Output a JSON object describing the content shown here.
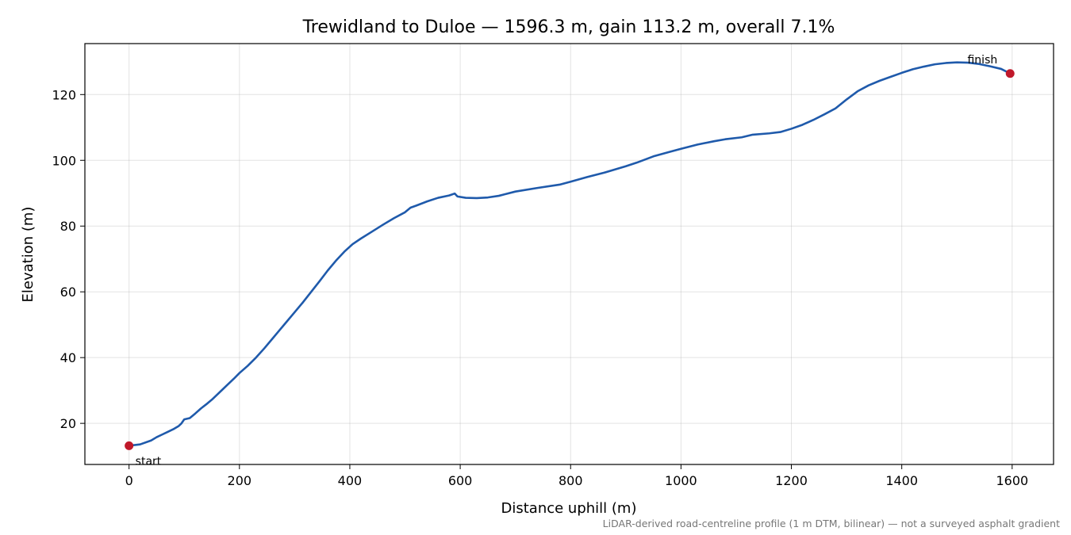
{
  "chart_data": {
    "type": "line",
    "title": "Trewidland to Duloe — 1596.3 m, gain 113.2 m, overall 7.1%",
    "xlabel": "Distance uphill (m)",
    "ylabel": "Elevation (m)",
    "xlim": [
      -80,
      1675
    ],
    "ylim": [
      7.5,
      135.5
    ],
    "xticks": [
      0,
      200,
      400,
      600,
      800,
      1000,
      1200,
      1400,
      1600
    ],
    "yticks": [
      20,
      40,
      60,
      80,
      100,
      120
    ],
    "grid": true,
    "line_color": "#1f5aab",
    "marker_color": "#c0182a",
    "series": [
      {
        "points": [
          [
            0,
            13.2
          ],
          [
            20,
            13.6
          ],
          [
            40,
            14.8
          ],
          [
            50,
            15.8
          ],
          [
            60,
            16.6
          ],
          [
            70,
            17.4
          ],
          [
            80,
            18.2
          ],
          [
            90,
            19.2
          ],
          [
            95,
            20.0
          ],
          [
            100,
            21.2
          ],
          [
            110,
            21.6
          ],
          [
            120,
            23.0
          ],
          [
            130,
            24.5
          ],
          [
            140,
            25.8
          ],
          [
            150,
            27.2
          ],
          [
            160,
            28.8
          ],
          [
            170,
            30.4
          ],
          [
            180,
            32.0
          ],
          [
            190,
            33.6
          ],
          [
            200,
            35.3
          ],
          [
            215,
            37.5
          ],
          [
            230,
            40.0
          ],
          [
            245,
            42.8
          ],
          [
            260,
            45.8
          ],
          [
            270,
            47.8
          ],
          [
            285,
            50.8
          ],
          [
            300,
            53.8
          ],
          [
            315,
            56.8
          ],
          [
            330,
            60.0
          ],
          [
            345,
            63.2
          ],
          [
            360,
            66.5
          ],
          [
            375,
            69.5
          ],
          [
            390,
            72.2
          ],
          [
            405,
            74.5
          ],
          [
            420,
            76.2
          ],
          [
            440,
            78.3
          ],
          [
            460,
            80.4
          ],
          [
            480,
            82.4
          ],
          [
            500,
            84.2
          ],
          [
            510,
            85.6
          ],
          [
            520,
            86.2
          ],
          [
            540,
            87.5
          ],
          [
            560,
            88.6
          ],
          [
            580,
            89.3
          ],
          [
            590,
            89.9
          ],
          [
            595,
            89.0
          ],
          [
            610,
            88.6
          ],
          [
            630,
            88.5
          ],
          [
            650,
            88.7
          ],
          [
            670,
            89.2
          ],
          [
            700,
            90.5
          ],
          [
            740,
            91.6
          ],
          [
            780,
            92.6
          ],
          [
            800,
            93.5
          ],
          [
            830,
            94.9
          ],
          [
            860,
            96.2
          ],
          [
            900,
            98.2
          ],
          [
            920,
            99.3
          ],
          [
            950,
            101.2
          ],
          [
            980,
            102.6
          ],
          [
            1000,
            103.5
          ],
          [
            1030,
            104.8
          ],
          [
            1060,
            105.8
          ],
          [
            1080,
            106.4
          ],
          [
            1110,
            107.0
          ],
          [
            1130,
            107.8
          ],
          [
            1160,
            108.2
          ],
          [
            1180,
            108.6
          ],
          [
            1200,
            109.6
          ],
          [
            1220,
            110.8
          ],
          [
            1240,
            112.3
          ],
          [
            1260,
            114.0
          ],
          [
            1280,
            115.8
          ],
          [
            1300,
            118.5
          ],
          [
            1320,
            121.0
          ],
          [
            1340,
            122.8
          ],
          [
            1360,
            124.2
          ],
          [
            1380,
            125.4
          ],
          [
            1400,
            126.6
          ],
          [
            1420,
            127.7
          ],
          [
            1440,
            128.5
          ],
          [
            1460,
            129.2
          ],
          [
            1480,
            129.6
          ],
          [
            1500,
            129.8
          ],
          [
            1520,
            129.7
          ],
          [
            1540,
            129.3
          ],
          [
            1560,
            128.6
          ],
          [
            1580,
            127.8
          ],
          [
            1596.3,
            126.4
          ]
        ]
      }
    ],
    "markers": [
      {
        "x": 0,
        "y": 13.2,
        "label": "start"
      },
      {
        "x": 1596.3,
        "y": 126.4,
        "label": "finish"
      }
    ],
    "footnote": "LiDAR-derived road-centreline profile (1 m DTM, bilinear) — not a surveyed asphalt gradient"
  }
}
